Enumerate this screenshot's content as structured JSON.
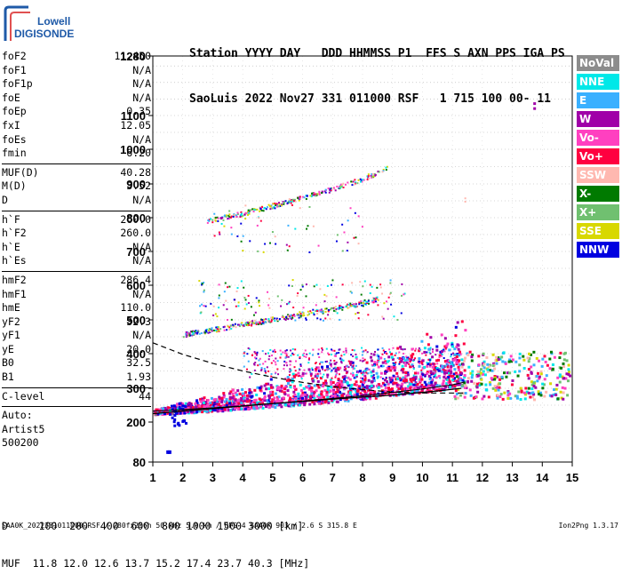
{
  "logo": {
    "line1": "Lowell",
    "line2": "DIGISONDE"
  },
  "header": {
    "row1": "Station YYYY DAY   DDD HHMMSS P1  FFS S AXN PPS IGA PS",
    "row2": "SaoLuis 2022 Nov27 331 011000 RSF   1 715 100 00- 11"
  },
  "params": [
    {
      "label": "foF2",
      "value": "11.450"
    },
    {
      "label": "foF1",
      "value": "N/A"
    },
    {
      "label": "foF1p",
      "value": "N/A"
    },
    {
      "label": "foE",
      "value": "N/A"
    },
    {
      "label": "foEp",
      "value": "0.35"
    },
    {
      "label": "fxI",
      "value": "12.05"
    },
    {
      "label": "foEs",
      "value": "N/A"
    },
    {
      "label": "fmin",
      "value": "6.20"
    },
    {
      "sep": true
    },
    {
      "label": "MUF(D)",
      "value": "40.28"
    },
    {
      "label": "M(D)",
      "value": "3.52"
    },
    {
      "label": "D",
      "value": "N/A"
    },
    {
      "sep": true
    },
    {
      "label": "h`F",
      "value": "260.0"
    },
    {
      "label": "h`F2",
      "value": "260.0"
    },
    {
      "label": "h`E",
      "value": "N/A"
    },
    {
      "label": "h`Es",
      "value": "N/A"
    },
    {
      "sep": true
    },
    {
      "label": "hmF2",
      "value": "286.4"
    },
    {
      "label": "hmF1",
      "value": "N/A"
    },
    {
      "label": "hmE",
      "value": "110.0"
    },
    {
      "label": "yF2",
      "value": "32.3"
    },
    {
      "label": "yF1",
      "value": "N/A"
    },
    {
      "label": "yE",
      "value": "20.0"
    },
    {
      "label": "B0",
      "value": "32.5"
    },
    {
      "label": "B1",
      "value": "1.93"
    },
    {
      "sep": true
    },
    {
      "label": "C-level",
      "value": "44"
    },
    {
      "sep": true
    },
    {
      "label": "Auto:",
      "value": ""
    },
    {
      "label": "Artist5",
      "value": ""
    },
    {
      "label": "500200",
      "value": ""
    }
  ],
  "legend": [
    {
      "label": "NoVal",
      "color": "#8c8c8c"
    },
    {
      "label": "NNE",
      "color": "#00e8e8"
    },
    {
      "label": "E",
      "color": "#3ab0ff"
    },
    {
      "label": "W",
      "color": "#a000a8"
    },
    {
      "label": "Vo-",
      "color": "#ff40c0"
    },
    {
      "label": "Vo+",
      "color": "#ff0040"
    },
    {
      "label": "SSW",
      "color": "#ffb8b0"
    },
    {
      "label": "X-",
      "color": "#007a00"
    },
    {
      "label": "X+",
      "color": "#70c070"
    },
    {
      "label": "SSE",
      "color": "#d8d800"
    },
    {
      "label": "NNW",
      "color": "#0000e0"
    }
  ],
  "chart_data": {
    "type": "scatter",
    "xlim": [
      1,
      15
    ],
    "x_ticks": [
      1,
      2,
      3,
      4,
      5,
      6,
      7,
      8,
      9,
      10,
      11,
      12,
      13,
      14,
      15
    ],
    "y_ticks": [
      80,
      200,
      300,
      400,
      500,
      600,
      700,
      800,
      900,
      1000,
      1100,
      1280
    ],
    "y_range": [
      80,
      1280
    ],
    "grid": "horizontal",
    "traces": [
      {
        "name": "F-trace",
        "x": [
          1.0,
          2.0,
          3.0,
          4.0,
          5.0,
          6.0,
          7.0,
          8.0,
          9.0,
          10.0,
          11.0,
          11.4
        ],
        "y": [
          232,
          237,
          242,
          248,
          255,
          262,
          270,
          278,
          288,
          298,
          310,
          318
        ]
      },
      {
        "name": "2F-trace",
        "x": [
          2.0,
          3.0,
          4.0,
          5.0,
          6.0,
          7.0,
          8.0,
          8.5
        ],
        "y": [
          455,
          470,
          485,
          500,
          515,
          530,
          548,
          560
        ]
      },
      {
        "name": "3F-trace",
        "x": [
          2.8,
          4.0,
          5.0,
          6.0,
          7.0,
          8.0,
          8.8
        ],
        "y": [
          790,
          812,
          836,
          860,
          885,
          915,
          945
        ]
      }
    ],
    "profile": {
      "x": [
        1.0,
        2.0,
        3.0,
        4.0,
        5.0,
        6.0,
        7.0,
        8.0,
        9.0,
        10.0,
        11.45
      ],
      "y": [
        432,
        398,
        372,
        350,
        332,
        317,
        305,
        296,
        289,
        286,
        286
      ]
    },
    "profile2": {
      "x": [
        1.0,
        3.0,
        5.0,
        7.0,
        9.0,
        10.5,
        11.3
      ],
      "y": [
        225,
        240,
        255,
        268,
        280,
        292,
        300
      ]
    }
  },
  "bottom": {
    "d_row": "D     100  200  400  600  800 1000 1500 3000 [km]",
    "muf_row": "MUF  11.8 12.0 12.6 13.7 15.2 17.4 23.7 40.3 [MHz]"
  },
  "footer": "SAA0K_2022331011000.RSF / 280fx256h 50 kHz 5.0 km / DPS-4 SAA0K 903 / 2.6 S 315.8 E",
  "version": "Ion2Png 1.3.17"
}
